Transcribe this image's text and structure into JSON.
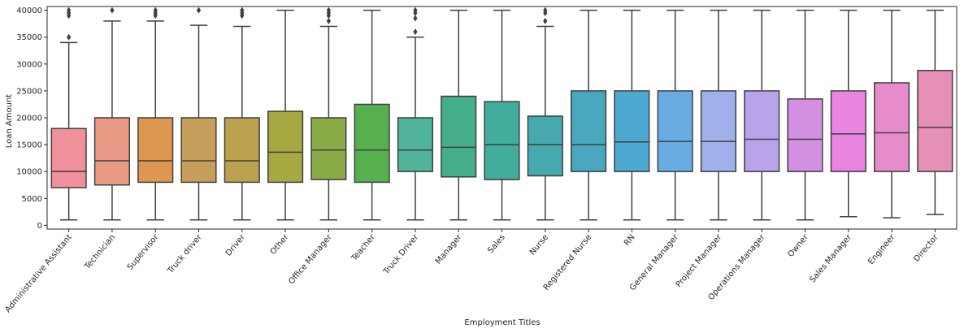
{
  "chart_data": {
    "type": "box",
    "title": "",
    "xlabel": "Employment Titles",
    "ylabel": "Loan Amount",
    "ylim": [
      -700,
      40700
    ],
    "yticks": [
      0,
      5000,
      10000,
      15000,
      20000,
      25000,
      30000,
      35000,
      40000
    ],
    "grid": false,
    "categories": [
      "Administrative Assistant",
      "Technician",
      "Supervisor",
      "Truck driver",
      "Driver",
      "Other",
      "Office Manager",
      "Teacher",
      "Truck Driver",
      "Manager",
      "Sales",
      "Nurse",
      "Registered Nurse",
      "RN",
      "General Manager",
      "Project Manager",
      "Operations Manager",
      "Owner",
      "Sales Manager",
      "Engineer",
      "Director"
    ],
    "colors": [
      "#f0909a",
      "#e99a85",
      "#de9751",
      "#c6a05a",
      "#bba14d",
      "#a6a942",
      "#8aab48",
      "#57b04f",
      "#4fb49a",
      "#45ae8d",
      "#42ad9c",
      "#45aab0",
      "#49a7c0",
      "#4ea9d2",
      "#69ace4",
      "#9fb0ea",
      "#b9a3ea",
      "#d390e3",
      "#ea84e1",
      "#e68ccb",
      "#e690b8"
    ],
    "boxes": [
      {
        "whislo": 1000,
        "q1": 7000,
        "med": 10000,
        "q3": 18000,
        "whishi": 34000,
        "fliers": [
          35000,
          39000,
          39500,
          40000
        ]
      },
      {
        "whislo": 1000,
        "q1": 7500,
        "med": 12000,
        "q3": 20000,
        "whishi": 38000,
        "fliers": [
          40000
        ]
      },
      {
        "whislo": 1000,
        "q1": 8000,
        "med": 12000,
        "q3": 20000,
        "whishi": 38000,
        "fliers": [
          39000,
          39500,
          40000
        ]
      },
      {
        "whislo": 1000,
        "q1": 8000,
        "med": 12000,
        "q3": 20000,
        "whishi": 37200,
        "fliers": [
          40000
        ]
      },
      {
        "whislo": 1000,
        "q1": 8000,
        "med": 12000,
        "q3": 20000,
        "whishi": 37000,
        "fliers": [
          39000,
          39500,
          40000
        ]
      },
      {
        "whislo": 1000,
        "q1": 8000,
        "med": 13600,
        "q3": 21200,
        "whishi": 40000,
        "fliers": []
      },
      {
        "whislo": 1000,
        "q1": 8500,
        "med": 14000,
        "q3": 20000,
        "whishi": 37000,
        "fliers": [
          38000,
          39000,
          39500,
          40000
        ]
      },
      {
        "whislo": 1000,
        "q1": 8000,
        "med": 14000,
        "q3": 22500,
        "whishi": 40000,
        "fliers": []
      },
      {
        "whislo": 1000,
        "q1": 10000,
        "med": 14000,
        "q3": 20000,
        "whishi": 35000,
        "fliers": [
          36000,
          38500,
          39500,
          40000
        ]
      },
      {
        "whislo": 1000,
        "q1": 9000,
        "med": 14500,
        "q3": 24000,
        "whishi": 40000,
        "fliers": []
      },
      {
        "whislo": 1000,
        "q1": 8500,
        "med": 15000,
        "q3": 23000,
        "whishi": 40000,
        "fliers": []
      },
      {
        "whislo": 1000,
        "q1": 9200,
        "med": 15000,
        "q3": 20300,
        "whishi": 37000,
        "fliers": [
          38000,
          39500,
          40000
        ]
      },
      {
        "whislo": 1000,
        "q1": 10000,
        "med": 15000,
        "q3": 25000,
        "whishi": 40000,
        "fliers": []
      },
      {
        "whislo": 1000,
        "q1": 10000,
        "med": 15500,
        "q3": 25000,
        "whishi": 40000,
        "fliers": []
      },
      {
        "whislo": 1000,
        "q1": 10000,
        "med": 15600,
        "q3": 25000,
        "whishi": 40000,
        "fliers": []
      },
      {
        "whislo": 1000,
        "q1": 10000,
        "med": 15600,
        "q3": 25000,
        "whishi": 40000,
        "fliers": []
      },
      {
        "whislo": 1000,
        "q1": 10000,
        "med": 16000,
        "q3": 25000,
        "whishi": 40000,
        "fliers": []
      },
      {
        "whislo": 1000,
        "q1": 10000,
        "med": 16000,
        "q3": 23500,
        "whishi": 40000,
        "fliers": []
      },
      {
        "whislo": 1600,
        "q1": 10000,
        "med": 17000,
        "q3": 25000,
        "whishi": 40000,
        "fliers": []
      },
      {
        "whislo": 1400,
        "q1": 10000,
        "med": 17200,
        "q3": 26500,
        "whishi": 40000,
        "fliers": []
      },
      {
        "whislo": 2000,
        "q1": 10000,
        "med": 18200,
        "q3": 28800,
        "whishi": 40000,
        "fliers": []
      }
    ]
  }
}
